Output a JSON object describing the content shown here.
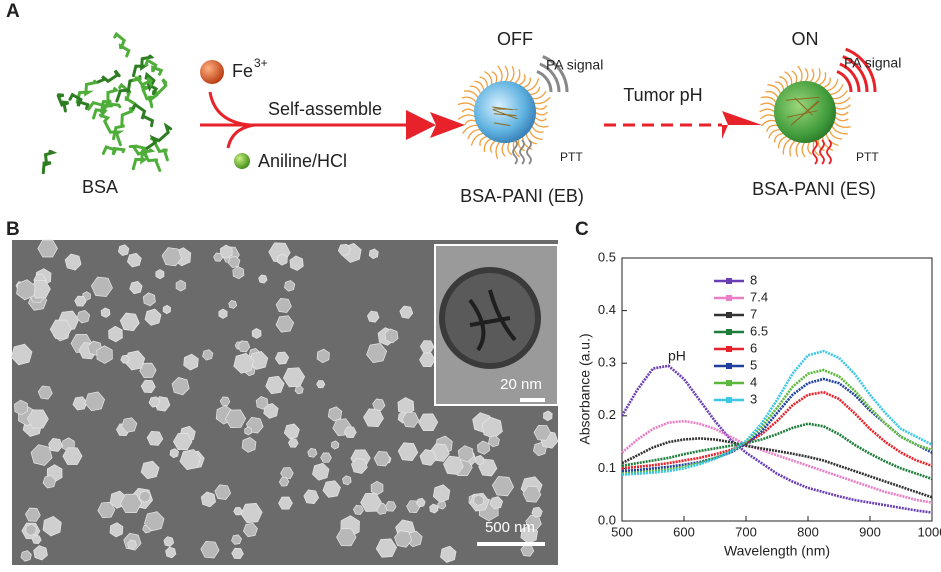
{
  "panel_a": {
    "label": "A",
    "fe": "Fe",
    "fe_charge": "3+",
    "self_assemble": "Self-assemble",
    "aniline": "Aniline/HCl",
    "bsa": "BSA",
    "off": "OFF",
    "pa_signal_off": "PA signal",
    "ptt_off": "PTT",
    "eb": "BSA-PANI (EB)",
    "tumor_ph": "Tumor pH",
    "on": "ON",
    "pa_signal_on": "PA signal",
    "ptt_on": "PTT",
    "es": "BSA-PANI (ES)"
  },
  "panel_b": {
    "label": "B",
    "inset_scale": "20 nm",
    "scale": "500 nm"
  },
  "chart_data": {
    "type": "line",
    "panel_label": "C",
    "x_label": "Wavelength (nm)",
    "y_label": "Absorbance (a.u.)",
    "legend_title": "pH",
    "x": [
      500,
      525,
      550,
      575,
      600,
      625,
      650,
      675,
      700,
      725,
      750,
      775,
      800,
      825,
      850,
      875,
      900,
      925,
      950,
      975,
      1000
    ],
    "xlim": [
      500,
      1000
    ],
    "xticks": [
      500,
      600,
      700,
      800,
      900,
      1000
    ],
    "ylim": [
      0,
      0.5
    ],
    "yticks": [
      {
        "value": 0,
        "label": "0.0"
      },
      0.1,
      0.2,
      0.3,
      0.4,
      0.5
    ],
    "series": [
      {
        "name": "8",
        "color": "#6a3fb5",
        "values": [
          0.2,
          0.25,
          0.29,
          0.295,
          0.27,
          0.23,
          0.19,
          0.155,
          0.13,
          0.11,
          0.09,
          0.075,
          0.063,
          0.055,
          0.047,
          0.04,
          0.035,
          0.03,
          0.025,
          0.02,
          0.016
        ]
      },
      {
        "name": "7.4",
        "color": "#e97fc4",
        "values": [
          0.13,
          0.155,
          0.175,
          0.187,
          0.19,
          0.185,
          0.175,
          0.16,
          0.145,
          0.135,
          0.125,
          0.115,
          0.105,
          0.095,
          0.085,
          0.075,
          0.065,
          0.055,
          0.048,
          0.04,
          0.035
        ]
      },
      {
        "name": "7",
        "color": "#333333",
        "values": [
          0.11,
          0.125,
          0.14,
          0.15,
          0.155,
          0.157,
          0.155,
          0.15,
          0.143,
          0.138,
          0.133,
          0.128,
          0.122,
          0.115,
          0.105,
          0.095,
          0.085,
          0.075,
          0.065,
          0.055,
          0.045
        ]
      },
      {
        "name": "6.5",
        "color": "#1e7d3a",
        "values": [
          0.105,
          0.11,
          0.115,
          0.12,
          0.127,
          0.133,
          0.138,
          0.143,
          0.148,
          0.155,
          0.165,
          0.177,
          0.185,
          0.18,
          0.165,
          0.145,
          0.128,
          0.113,
          0.1,
          0.09,
          0.08
        ]
      },
      {
        "name": "6",
        "color": "#e8222a",
        "values": [
          0.1,
          0.103,
          0.106,
          0.11,
          0.115,
          0.12,
          0.127,
          0.135,
          0.148,
          0.165,
          0.19,
          0.22,
          0.24,
          0.245,
          0.232,
          0.205,
          0.175,
          0.15,
          0.13,
          0.115,
          0.105
        ]
      },
      {
        "name": "5",
        "color": "#2040a0",
        "values": [
          0.095,
          0.097,
          0.1,
          0.103,
          0.107,
          0.112,
          0.12,
          0.13,
          0.147,
          0.17,
          0.205,
          0.24,
          0.262,
          0.27,
          0.262,
          0.24,
          0.21,
          0.185,
          0.16,
          0.145,
          0.13
        ]
      },
      {
        "name": "4",
        "color": "#5cb83a",
        "values": [
          0.09,
          0.092,
          0.095,
          0.098,
          0.103,
          0.11,
          0.12,
          0.132,
          0.15,
          0.178,
          0.215,
          0.255,
          0.28,
          0.287,
          0.275,
          0.248,
          0.215,
          0.185,
          0.16,
          0.145,
          0.135
        ]
      },
      {
        "name": "3",
        "color": "#3cc7e6",
        "values": [
          0.088,
          0.09,
          0.092,
          0.095,
          0.1,
          0.108,
          0.118,
          0.132,
          0.152,
          0.185,
          0.23,
          0.28,
          0.315,
          0.323,
          0.31,
          0.28,
          0.24,
          0.205,
          0.175,
          0.16,
          0.145
        ]
      }
    ]
  }
}
